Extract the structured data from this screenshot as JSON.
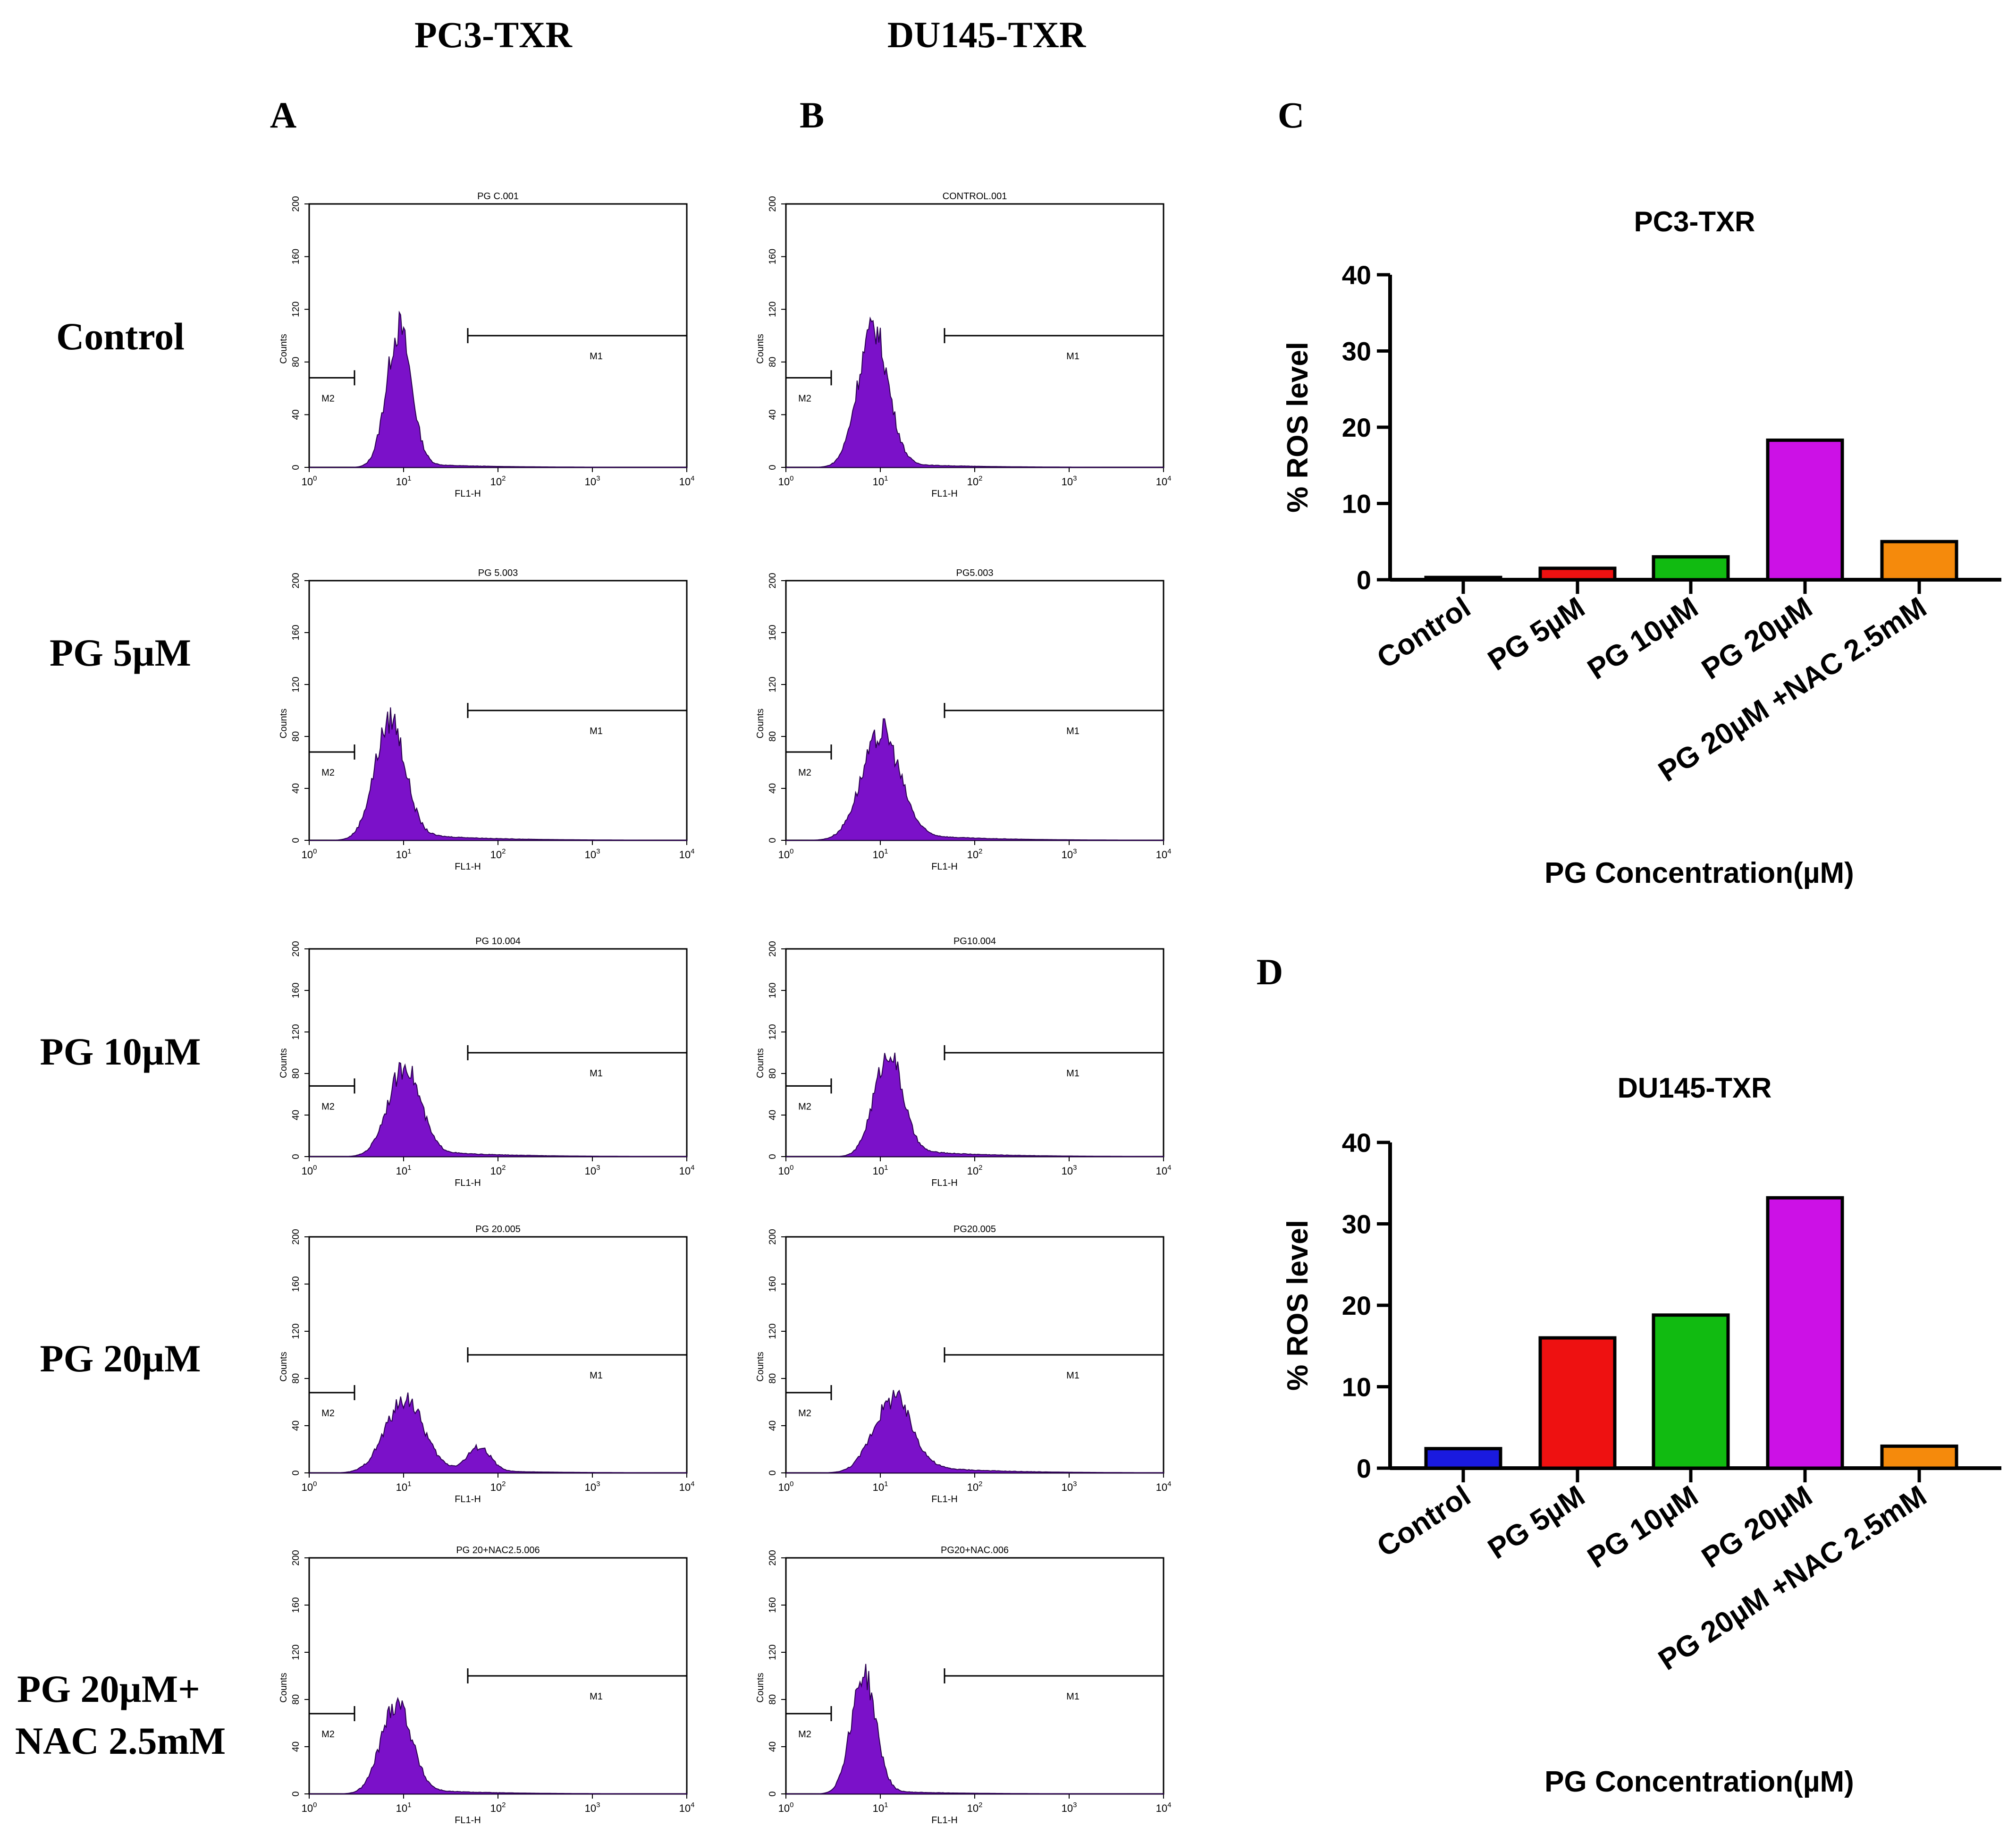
{
  "columns": [
    "PC3-TXR",
    "DU145-TXR"
  ],
  "panel_letters": [
    "A",
    "B",
    "C",
    "D"
  ],
  "row_labels": [
    [
      "Control"
    ],
    [
      "PG 5µM"
    ],
    [
      "PG 10µM"
    ],
    [
      "PG 20µM"
    ],
    [
      "PG 20µM+",
      "NAC 2.5mM"
    ]
  ],
  "histograms": {
    "y_axis_label": "Counts",
    "x_axis_label_pc3": "FL1-H",
    "x_axis_label_du145": "FL1-H",
    "y_ticks": [
      "0",
      "40",
      "80",
      "120",
      "160",
      "200"
    ],
    "x_tick_base": "10",
    "x_tick_exponents": [
      "0",
      "1",
      "2",
      "3",
      "4"
    ],
    "gate_labels": [
      "M1",
      "M2"
    ],
    "fill_color": "#7b11c9",
    "panels": [
      {
        "col": 0,
        "row": 0,
        "title": "PG C.001",
        "peak": 0.95,
        "spread": 0.13,
        "height": 0.52,
        "tail": 0.05
      },
      {
        "col": 1,
        "row": 0,
        "title": "CONTROL.001",
        "peak": 0.92,
        "spread": 0.16,
        "height": 0.52,
        "tail": 0.06
      },
      {
        "col": 0,
        "row": 1,
        "title": "PG 5.003",
        "peak": 0.85,
        "spread": 0.16,
        "height": 0.45,
        "tail": 0.12
      },
      {
        "col": 1,
        "row": 1,
        "title": "PG5.003",
        "peak": 1.0,
        "spread": 0.2,
        "height": 0.4,
        "tail": 0.14
      },
      {
        "col": 0,
        "row": 2,
        "title": "PG 10.004",
        "peak": 1.0,
        "spread": 0.17,
        "height": 0.42,
        "tail": 0.14
      },
      {
        "col": 1,
        "row": 2,
        "title": "PG10.004",
        "peak": 1.08,
        "spread": 0.15,
        "height": 0.48,
        "tail": 0.14
      },
      {
        "col": 0,
        "row": 3,
        "title": "PG 20.005",
        "peak": 1.0,
        "spread": 0.2,
        "height": 0.3,
        "tail": 0.16,
        "hump2": 1.8
      },
      {
        "col": 1,
        "row": 3,
        "title": "PG20.005",
        "peak": 1.12,
        "spread": 0.2,
        "height": 0.3,
        "tail": 0.22
      },
      {
        "col": 0,
        "row": 4,
        "title": "PG 20+NAC2.5.006",
        "peak": 0.92,
        "spread": 0.16,
        "height": 0.38,
        "tail": 0.1
      },
      {
        "col": 1,
        "row": 4,
        "title": "PG20+NAC.006",
        "peak": 0.82,
        "spread": 0.13,
        "height": 0.5,
        "tail": 0.05
      }
    ]
  },
  "chart_data": [
    {
      "type": "bar",
      "title": "PC3-TXR",
      "categories": [
        "Control",
        "PG 5µM",
        "PG 10µM",
        "PG 20µM",
        "PG 20µM +NAC 2.5mM"
      ],
      "values": [
        0.3,
        1.5,
        3.0,
        18.3,
        5.0
      ],
      "colors": [
        "#1a1adf",
        "#ee1111",
        "#11bb11",
        "#cc11e6",
        "#f58a0c"
      ],
      "xlabel": "PG Concentration(µM)",
      "ylabel": "% ROS level",
      "ylim": [
        0,
        40
      ],
      "yticks": [
        "0",
        "10",
        "20",
        "30",
        "40"
      ]
    },
    {
      "type": "bar",
      "title": "DU145-TXR",
      "categories": [
        "Control",
        "PG 5µM",
        "PG 10µM",
        "PG 20µM",
        "PG 20µM +NAC 2.5mM"
      ],
      "values": [
        2.4,
        16.0,
        18.8,
        33.2,
        2.7
      ],
      "colors": [
        "#1a1adf",
        "#ee1111",
        "#11bb11",
        "#cc11e6",
        "#f58a0c"
      ],
      "xlabel": "PG Concentration(µM)",
      "ylabel": "% ROS level",
      "ylim": [
        0,
        40
      ],
      "yticks": [
        "0",
        "10",
        "20",
        "30",
        "40"
      ]
    }
  ]
}
